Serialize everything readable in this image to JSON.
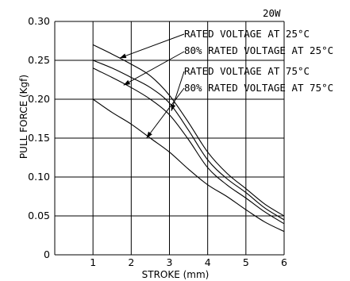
{
  "chart_data": {
    "type": "line",
    "title": "20W",
    "xlabel": "STROKE (mm)",
    "ylabel": "PULL FORCE (Kgf)",
    "xlim": [
      0,
      6
    ],
    "ylim": [
      0,
      0.3
    ],
    "x_ticks": [
      "1",
      "2",
      "3",
      "4",
      "5",
      "6"
    ],
    "y_ticks": [
      "0",
      "0.05",
      "0.10",
      "0.15",
      "0.20",
      "0.25",
      "0.30"
    ],
    "grid": true,
    "series": [
      {
        "name": "RATED VOLTAGE AT 25°C",
        "x": [
          1,
          1.5,
          2,
          2.5,
          3,
          3.5,
          4,
          4.5,
          5,
          5.5,
          6
        ],
        "y": [
          0.27,
          0.258,
          0.245,
          0.23,
          0.205,
          0.17,
          0.132,
          0.105,
          0.085,
          0.065,
          0.05
        ]
      },
      {
        "name": "80% RATED VOLTAGE AT 25°C",
        "x": [
          1,
          1.5,
          2,
          2.5,
          3,
          3.5,
          4,
          4.5,
          5,
          5.5,
          6
        ],
        "y": [
          0.25,
          0.24,
          0.228,
          0.215,
          0.195,
          0.16,
          0.122,
          0.098,
          0.08,
          0.06,
          0.045
        ]
      },
      {
        "name": "RATED VOLTAGE AT 75°C",
        "x": [
          1,
          1.5,
          2,
          2.5,
          3,
          3.5,
          4,
          4.5,
          5,
          5.5,
          6
        ],
        "y": [
          0.24,
          0.228,
          0.215,
          0.2,
          0.18,
          0.148,
          0.112,
          0.09,
          0.073,
          0.055,
          0.04
        ]
      },
      {
        "name": "80% RATED VOLTAGE AT 75°C",
        "x": [
          1,
          1.5,
          2,
          2.5,
          3,
          3.5,
          4,
          4.5,
          5,
          5.5,
          6
        ],
        "y": [
          0.2,
          0.183,
          0.168,
          0.15,
          0.132,
          0.11,
          0.09,
          0.075,
          0.058,
          0.042,
          0.03
        ]
      }
    ],
    "legend_placement": "top-right"
  }
}
